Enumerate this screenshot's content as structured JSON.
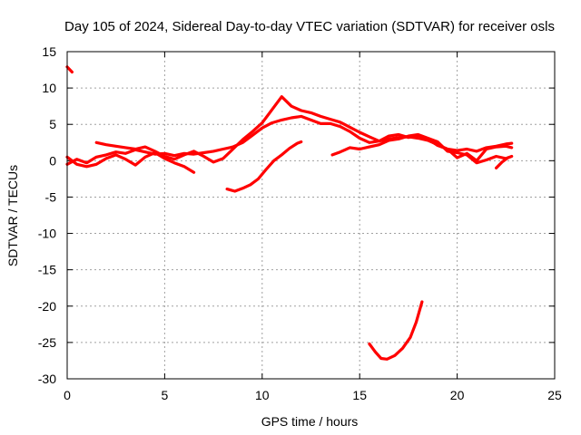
{
  "chart_data": {
    "type": "scatter",
    "title": "Day 105 of 2024, Sidereal Day-to-day VTEC variation (SDTVAR) for receiver osls",
    "xlabel": "GPS time / hours",
    "ylabel": "SDTVAR / TECUs",
    "xlim": [
      0,
      25
    ],
    "ylim": [
      -30,
      15
    ],
    "xticks": [
      "0",
      "5",
      "10",
      "15",
      "20",
      "25"
    ],
    "yticks": [
      "15",
      "10",
      "5",
      "0",
      "-5",
      "-10",
      "-15",
      "-20",
      "-25",
      "-30"
    ],
    "grid": true,
    "color": "#ff0000",
    "series": [
      {
        "name": "trace-1",
        "points": [
          [
            0.0,
            12.9
          ],
          [
            0.25,
            12.2
          ]
        ]
      },
      {
        "name": "trace-2",
        "points": [
          [
            0.0,
            -0.5
          ],
          [
            0.5,
            0.2
          ],
          [
            1.0,
            -0.3
          ],
          [
            1.5,
            0.5
          ],
          [
            2.0,
            0.8
          ],
          [
            2.5,
            1.2
          ],
          [
            3.0,
            1.0
          ],
          [
            3.5,
            1.5
          ],
          [
            4.0,
            1.2
          ],
          [
            4.5,
            0.9
          ],
          [
            5.0,
            1.0
          ],
          [
            5.5,
            0.7
          ],
          [
            6.0,
            1.0
          ],
          [
            6.5,
            0.9
          ],
          [
            7.0,
            1.1
          ],
          [
            7.5,
            1.3
          ],
          [
            8.0,
            1.6
          ],
          [
            8.5,
            1.9
          ],
          [
            9.0,
            2.5
          ],
          [
            9.5,
            3.5
          ],
          [
            10.0,
            4.5
          ],
          [
            10.5,
            5.2
          ],
          [
            11.0,
            5.6
          ],
          [
            11.5,
            5.9
          ],
          [
            12.0,
            6.1
          ],
          [
            12.5,
            5.6
          ],
          [
            13.0,
            5.1
          ],
          [
            13.5,
            5.1
          ],
          [
            14.0,
            4.7
          ],
          [
            14.5,
            4.0
          ],
          [
            15.0,
            3.1
          ],
          [
            15.5,
            2.5
          ],
          [
            16.0,
            2.7
          ],
          [
            16.5,
            3.0
          ],
          [
            17.0,
            3.2
          ],
          [
            17.5,
            3.3
          ],
          [
            18.0,
            3.1
          ],
          [
            18.5,
            2.8
          ],
          [
            19.0,
            2.2
          ],
          [
            19.5,
            1.6
          ],
          [
            20.0,
            1.4
          ],
          [
            20.5,
            1.6
          ],
          [
            21.0,
            1.3
          ],
          [
            21.5,
            1.8
          ],
          [
            22.0,
            2.0
          ],
          [
            22.5,
            2.3
          ],
          [
            22.8,
            2.4
          ]
        ]
      },
      {
        "name": "trace-3",
        "points": [
          [
            0.0,
            0.5
          ],
          [
            0.5,
            -0.5
          ],
          [
            1.0,
            -0.8
          ],
          [
            1.5,
            -0.5
          ],
          [
            2.0,
            0.3
          ],
          [
            2.5,
            0.8
          ],
          [
            3.0,
            0.2
          ],
          [
            3.5,
            -0.6
          ],
          [
            4.0,
            0.5
          ],
          [
            4.5,
            1.1
          ],
          [
            5.0,
            0.3
          ],
          [
            5.5,
            -0.3
          ],
          [
            6.0,
            -0.8
          ],
          [
            6.5,
            -1.6
          ]
        ]
      },
      {
        "name": "trace-4",
        "points": [
          [
            1.5,
            2.5
          ],
          [
            2.0,
            2.2
          ],
          [
            2.5,
            2.0
          ],
          [
            3.0,
            1.8
          ],
          [
            3.5,
            1.6
          ],
          [
            4.0,
            1.9
          ],
          [
            4.5,
            1.3
          ],
          [
            5.0,
            0.6
          ],
          [
            5.5,
            0.2
          ],
          [
            6.0,
            0.8
          ],
          [
            6.5,
            1.3
          ],
          [
            7.0,
            0.6
          ],
          [
            7.5,
            -0.2
          ],
          [
            8.0,
            0.3
          ],
          [
            8.5,
            1.6
          ],
          [
            9.0,
            2.9
          ],
          [
            9.5,
            4.0
          ],
          [
            10.0,
            5.2
          ],
          [
            10.5,
            7.0
          ],
          [
            11.0,
            8.8
          ],
          [
            11.5,
            7.5
          ],
          [
            12.0,
            6.9
          ],
          [
            12.5,
            6.6
          ],
          [
            13.0,
            6.1
          ],
          [
            13.5,
            5.7
          ],
          [
            14.0,
            5.3
          ],
          [
            14.5,
            4.6
          ],
          [
            15.0,
            3.9
          ],
          [
            15.5,
            3.3
          ],
          [
            16.0,
            2.7
          ],
          [
            16.5,
            3.4
          ],
          [
            17.0,
            3.6
          ],
          [
            17.5,
            3.2
          ],
          [
            18.0,
            3.5
          ],
          [
            18.5,
            3.0
          ],
          [
            19.0,
            2.1
          ],
          [
            19.5,
            1.6
          ],
          [
            20.0,
            0.4
          ],
          [
            20.5,
            1.0
          ],
          [
            21.0,
            0.0
          ],
          [
            21.5,
            1.6
          ],
          [
            22.0,
            1.9
          ],
          [
            22.5,
            2.0
          ],
          [
            22.8,
            1.8
          ]
        ]
      },
      {
        "name": "trace-5",
        "points": [
          [
            8.2,
            -3.9
          ],
          [
            8.6,
            -4.2
          ],
          [
            9.0,
            -3.8
          ],
          [
            9.4,
            -3.3
          ],
          [
            9.8,
            -2.5
          ],
          [
            10.2,
            -1.2
          ],
          [
            10.6,
            0.0
          ],
          [
            11.0,
            0.8
          ],
          [
            11.4,
            1.7
          ],
          [
            11.8,
            2.4
          ],
          [
            12.0,
            2.6
          ]
        ]
      },
      {
        "name": "trace-6",
        "points": [
          [
            13.6,
            0.8
          ],
          [
            14.0,
            1.2
          ],
          [
            14.5,
            1.8
          ],
          [
            15.0,
            1.6
          ],
          [
            15.5,
            1.9
          ],
          [
            16.0,
            2.2
          ],
          [
            16.5,
            2.8
          ],
          [
            17.0,
            3.0
          ],
          [
            17.5,
            3.4
          ],
          [
            18.0,
            3.6
          ],
          [
            18.5,
            3.1
          ],
          [
            19.0,
            2.6
          ],
          [
            19.5,
            1.3
          ],
          [
            20.0,
            1.1
          ],
          [
            20.5,
            0.8
          ],
          [
            21.0,
            -0.3
          ],
          [
            21.5,
            0.1
          ],
          [
            22.0,
            0.6
          ],
          [
            22.5,
            0.3
          ],
          [
            22.8,
            0.6
          ]
        ]
      },
      {
        "name": "trace-7",
        "points": [
          [
            22.0,
            -1.0
          ],
          [
            22.3,
            -0.2
          ],
          [
            22.6,
            0.4
          ]
        ]
      },
      {
        "name": "trace-8",
        "points": [
          [
            15.5,
            -25.2
          ],
          [
            15.8,
            -26.3
          ],
          [
            16.1,
            -27.2
          ],
          [
            16.4,
            -27.3
          ],
          [
            16.8,
            -26.8
          ],
          [
            17.2,
            -25.8
          ],
          [
            17.6,
            -24.3
          ],
          [
            17.9,
            -22.2
          ],
          [
            18.2,
            -19.4
          ]
        ]
      }
    ]
  }
}
